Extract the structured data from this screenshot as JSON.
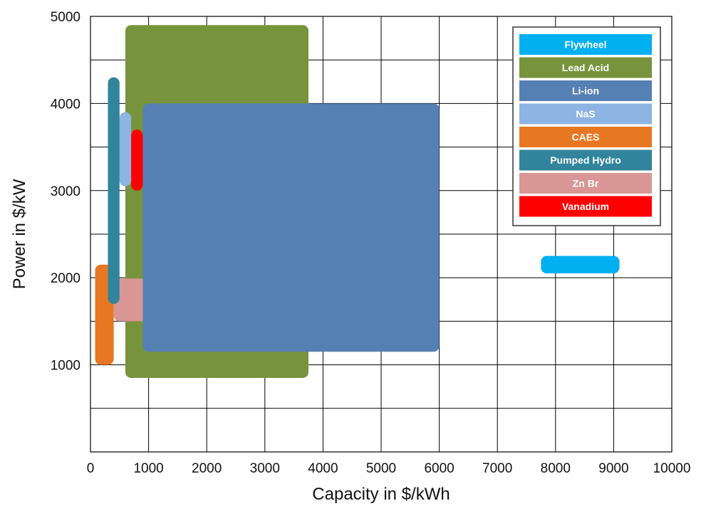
{
  "chart_data": {
    "type": "area",
    "xlabel": "Capacity in $/kWh",
    "ylabel": "Power in $/kW",
    "xlim": [
      0,
      10000
    ],
    "ylim": [
      0,
      5000
    ],
    "x_ticks": [
      0,
      1000,
      2000,
      3000,
      4000,
      5000,
      6000,
      7000,
      8000,
      9000,
      10000
    ],
    "x_tick_labels": [
      "0",
      "1000",
      "2000",
      "3000",
      "4000",
      "5000",
      "6000",
      "7000",
      "8000",
      "9000",
      "10000"
    ],
    "y_ticks": [
      1000,
      2000,
      3000,
      4000,
      5000
    ],
    "y_tick_labels": [
      "1000",
      "2000",
      "3000",
      "4000",
      "5000"
    ],
    "grid": {
      "x_step": 1000,
      "y_step": 500,
      "shown": true
    },
    "legend_position": "top-right",
    "series": [
      {
        "name": "Flywheel",
        "color": "#00B0F0",
        "x_range": [
          7750,
          9100
        ],
        "y_range": [
          2050,
          2250
        ]
      },
      {
        "name": "Lead Acid",
        "color": "#77933C",
        "x_range": [
          600,
          3750
        ],
        "y_range": [
          850,
          4900
        ]
      },
      {
        "name": "Li-ion",
        "color": "#5580B4",
        "x_range": [
          900,
          6000
        ],
        "y_range": [
          1150,
          4000
        ]
      },
      {
        "name": "NaS",
        "color": "#8DB4E2",
        "x_range": [
          500,
          700
        ],
        "y_range": [
          3050,
          3900
        ]
      },
      {
        "name": "CAES",
        "color": "#E87722",
        "x_range": [
          80,
          400
        ],
        "y_range": [
          1000,
          2150
        ]
      },
      {
        "name": "Pumped Hydro",
        "color": "#31849B",
        "x_range": [
          300,
          500
        ],
        "y_range": [
          1700,
          4300
        ]
      },
      {
        "name": "Zn Br",
        "color": "#DA9694",
        "x_range": [
          400,
          1150
        ],
        "y_range": [
          1500,
          1990
        ]
      },
      {
        "name": "Vanadium",
        "color": "#FF0000",
        "x_range": [
          700,
          900
        ],
        "y_range": [
          3000,
          3700
        ]
      }
    ]
  }
}
